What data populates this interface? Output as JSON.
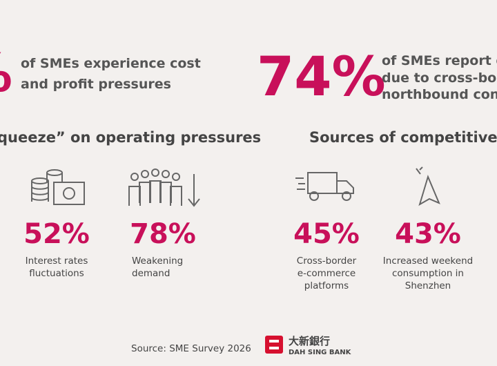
{
  "headline_left": {
    "figure": "%",
    "lines": [
      "of SMEs experience cost",
      "and profit pressures"
    ]
  },
  "headline_right": {
    "figure": "74%",
    "lines": [
      "of SMEs report decl",
      "due to cross-border",
      "northbound consum"
    ]
  },
  "section_left": {
    "title": "queeze” on operating pressures",
    "stats": [
      {
        "figure": "52%",
        "lines": [
          "Interest rates",
          "fluctuations"
        ]
      },
      {
        "figure": "78%",
        "lines": [
          "Weakening",
          "demand"
        ]
      }
    ]
  },
  "section_right": {
    "title": "Sources of competitive pre",
    "stats": [
      {
        "figure": "45%",
        "lines": [
          "Cross-border",
          "e-commerce",
          "platforms"
        ]
      },
      {
        "figure": "43%",
        "lines": [
          "Increased weekend",
          "consumption in",
          "Shenzhen"
        ]
      }
    ]
  },
  "footer": {
    "source": "Source: SME Survey 2026",
    "brand_chinese": "大新銀行",
    "brand_english": "DAH SING BANK"
  }
}
